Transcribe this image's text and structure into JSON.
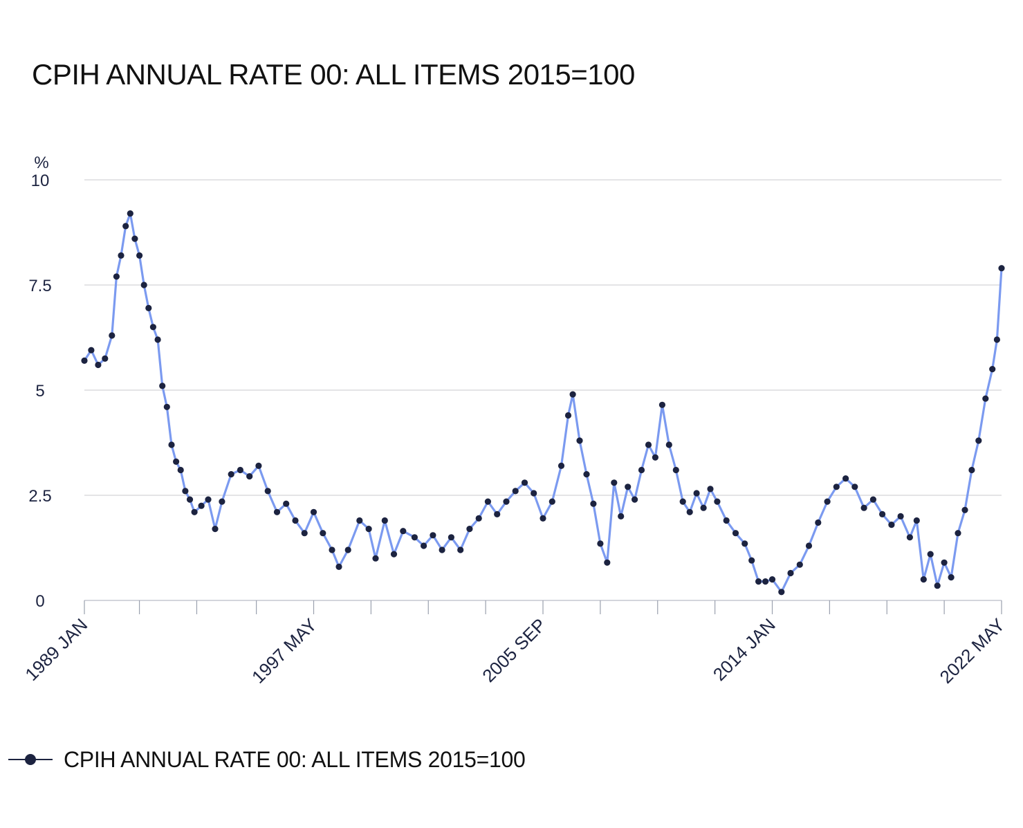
{
  "chart_data": {
    "type": "line",
    "title": "CPIH ANNUAL RATE 00: ALL ITEMS 2015=100",
    "ylabel": "%",
    "xlabel": "",
    "ylim": [
      0,
      10
    ],
    "yticks": [
      "0",
      "2.5",
      "5",
      "7.5",
      "10"
    ],
    "x_range": [
      "1989-01",
      "2022-05"
    ],
    "x_tick_labels": [
      {
        "date": "1989-01",
        "label": "1989 JAN"
      },
      {
        "date": "1997-05",
        "label": "1997 MAY"
      },
      {
        "date": "2005-09",
        "label": "2005 SEP"
      },
      {
        "date": "2014-01",
        "label": "2014 JAN"
      },
      {
        "date": "2022-05",
        "label": "2022 MAY"
      }
    ],
    "minor_ticks": [
      "1989-01",
      "1991-01",
      "1993-02",
      "1995-04",
      "1997-05",
      "1999-06",
      "2001-07",
      "2003-08",
      "2005-09",
      "2007-10",
      "2009-11",
      "2011-12",
      "2014-01",
      "2016-02",
      "2018-03",
      "2020-04",
      "2022-05"
    ],
    "grid": true,
    "legend_position": "bottom-left",
    "line_color": "#7b9af0",
    "marker_color": "#1c2340",
    "series": [
      {
        "name": "CPIH ANNUAL RATE 00: ALL ITEMS 2015=100",
        "points": [
          [
            "1989-01",
            5.7
          ],
          [
            "1989-04",
            5.95
          ],
          [
            "1989-07",
            5.6
          ],
          [
            "1989-10",
            5.75
          ],
          [
            "1990-01",
            6.3
          ],
          [
            "1990-03",
            7.7
          ],
          [
            "1990-05",
            8.2
          ],
          [
            "1990-07",
            8.9
          ],
          [
            "1990-09",
            9.2
          ],
          [
            "1990-11",
            8.6
          ],
          [
            "1991-01",
            8.2
          ],
          [
            "1991-03",
            7.5
          ],
          [
            "1991-05",
            6.95
          ],
          [
            "1991-07",
            6.5
          ],
          [
            "1991-09",
            6.2
          ],
          [
            "1991-11",
            5.1
          ],
          [
            "1992-01",
            4.6
          ],
          [
            "1992-03",
            3.7
          ],
          [
            "1992-05",
            3.3
          ],
          [
            "1992-07",
            3.1
          ],
          [
            "1992-09",
            2.6
          ],
          [
            "1992-11",
            2.4
          ],
          [
            "1993-01",
            2.1
          ],
          [
            "1993-04",
            2.25
          ],
          [
            "1993-07",
            2.4
          ],
          [
            "1993-10",
            1.7
          ],
          [
            "1994-01",
            2.35
          ],
          [
            "1994-05",
            3.0
          ],
          [
            "1994-09",
            3.1
          ],
          [
            "1995-01",
            2.95
          ],
          [
            "1995-05",
            3.2
          ],
          [
            "1995-09",
            2.6
          ],
          [
            "1996-01",
            2.1
          ],
          [
            "1996-05",
            2.3
          ],
          [
            "1996-09",
            1.9
          ],
          [
            "1997-01",
            1.6
          ],
          [
            "1997-05",
            2.1
          ],
          [
            "1997-09",
            1.6
          ],
          [
            "1998-01",
            1.2
          ],
          [
            "1998-04",
            0.8
          ],
          [
            "1998-08",
            1.2
          ],
          [
            "1999-01",
            1.9
          ],
          [
            "1999-05",
            1.7
          ],
          [
            "1999-08",
            1.0
          ],
          [
            "1999-12",
            1.9
          ],
          [
            "2000-04",
            1.1
          ],
          [
            "2000-08",
            1.65
          ],
          [
            "2001-01",
            1.5
          ],
          [
            "2001-05",
            1.3
          ],
          [
            "2001-09",
            1.55
          ],
          [
            "2002-01",
            1.2
          ],
          [
            "2002-05",
            1.5
          ],
          [
            "2002-09",
            1.2
          ],
          [
            "2003-01",
            1.7
          ],
          [
            "2003-05",
            1.95
          ],
          [
            "2003-09",
            2.35
          ],
          [
            "2004-01",
            2.05
          ],
          [
            "2004-05",
            2.35
          ],
          [
            "2004-09",
            2.6
          ],
          [
            "2005-01",
            2.8
          ],
          [
            "2005-05",
            2.55
          ],
          [
            "2005-09",
            1.95
          ],
          [
            "2006-01",
            2.35
          ],
          [
            "2006-05",
            3.2
          ],
          [
            "2006-08",
            4.4
          ],
          [
            "2006-10",
            4.9
          ],
          [
            "2007-01",
            3.8
          ],
          [
            "2007-04",
            3.0
          ],
          [
            "2007-07",
            2.3
          ],
          [
            "2007-10",
            1.35
          ],
          [
            "2008-01",
            0.9
          ],
          [
            "2008-04",
            2.8
          ],
          [
            "2008-07",
            2.0
          ],
          [
            "2008-10",
            2.7
          ],
          [
            "2009-01",
            2.4
          ],
          [
            "2009-04",
            3.1
          ],
          [
            "2009-07",
            3.7
          ],
          [
            "2009-10",
            3.4
          ],
          [
            "2010-01",
            4.65
          ],
          [
            "2010-04",
            3.7
          ],
          [
            "2010-07",
            3.1
          ],
          [
            "2010-10",
            2.35
          ],
          [
            "2011-01",
            2.1
          ],
          [
            "2011-04",
            2.55
          ],
          [
            "2011-07",
            2.2
          ],
          [
            "2011-10",
            2.65
          ],
          [
            "2012-01",
            2.35
          ],
          [
            "2012-05",
            1.9
          ],
          [
            "2012-09",
            1.6
          ],
          [
            "2013-01",
            1.35
          ],
          [
            "2013-04",
            0.95
          ],
          [
            "2013-07",
            0.45
          ],
          [
            "2013-10",
            0.45
          ],
          [
            "2014-01",
            0.5
          ],
          [
            "2014-05",
            0.2
          ],
          [
            "2014-09",
            0.65
          ],
          [
            "2015-01",
            0.85
          ],
          [
            "2015-05",
            1.3
          ],
          [
            "2015-09",
            1.85
          ],
          [
            "2016-01",
            2.35
          ],
          [
            "2016-05",
            2.7
          ],
          [
            "2016-09",
            2.9
          ],
          [
            "2017-01",
            2.7
          ],
          [
            "2017-05",
            2.2
          ],
          [
            "2017-09",
            2.4
          ],
          [
            "2018-01",
            2.05
          ],
          [
            "2018-05",
            1.8
          ],
          [
            "2018-09",
            2.0
          ],
          [
            "2019-01",
            1.5
          ],
          [
            "2019-04",
            1.9
          ],
          [
            "2019-07",
            0.5
          ],
          [
            "2019-10",
            1.1
          ],
          [
            "2020-01",
            0.35
          ],
          [
            "2020-04",
            0.9
          ],
          [
            "2020-07",
            0.55
          ],
          [
            "2020-10",
            1.6
          ],
          [
            "2021-01",
            2.15
          ],
          [
            "2021-04",
            3.1
          ],
          [
            "2021-07",
            3.8
          ],
          [
            "2021-10",
            4.8
          ],
          [
            "2022-01",
            5.5
          ],
          [
            "2022-03",
            6.2
          ],
          [
            "2022-05",
            7.9
          ]
        ]
      }
    ]
  }
}
